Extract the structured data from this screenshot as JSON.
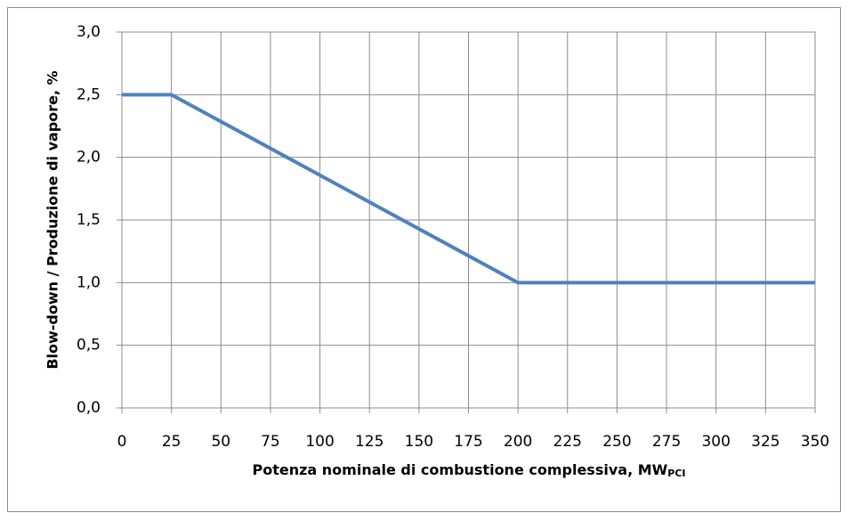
{
  "chart_data": {
    "type": "line",
    "xlabel": "Potenza nominale di combustione complessiva,  MW",
    "xlabel_subscript": "PCI",
    "ylabel": "Blow-down / Produzione di vapore, %",
    "x": [
      0,
      25,
      200,
      350
    ],
    "series": [
      {
        "color": "#4f81bd",
        "values": [
          2.5,
          2.5,
          1.0,
          1.0
        ]
      }
    ],
    "xlim": [
      0,
      350
    ],
    "xticks": [
      0,
      25,
      50,
      75,
      100,
      125,
      150,
      175,
      200,
      225,
      250,
      275,
      300,
      325,
      350
    ],
    "ylim": [
      0,
      3
    ],
    "yticks": [
      {
        "value": 0,
        "label": "0,0"
      },
      {
        "value": 0.5,
        "label": "0,5"
      },
      {
        "value": 1,
        "label": "1,0"
      },
      {
        "value": 1.5,
        "label": "1,5"
      },
      {
        "value": 2,
        "label": "2,0"
      },
      {
        "value": 2.5,
        "label": "2,5"
      },
      {
        "value": 3,
        "label": "3,0"
      }
    ],
    "grid": true
  }
}
